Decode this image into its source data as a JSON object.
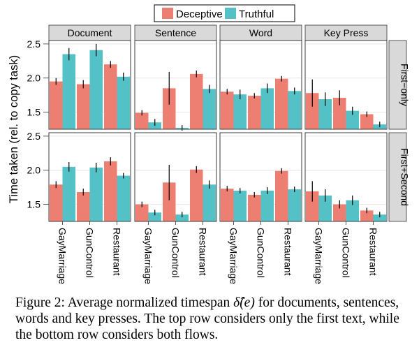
{
  "chart_data": {
    "type": "bar",
    "facet_columns": [
      "Document",
      "Sentence",
      "Word",
      "Key Press"
    ],
    "facet_rows": [
      "First−only",
      "First+Second"
    ],
    "categories": [
      "GayMarriage",
      "GunControl",
      "Restaurant"
    ],
    "ylabel": "Time taken (rel. to copy task)",
    "xlabel": "",
    "ylim": [
      1.25,
      2.55
    ],
    "yticks": [
      "1.5",
      "2.0",
      "2.5"
    ],
    "legend": {
      "placement": "top-center",
      "entries": [
        "Deceptive",
        "Truthful"
      ]
    },
    "series_colors": {
      "Deceptive": "#ED7F72",
      "Truthful": "#54C1C7"
    },
    "panels": [
      {
        "row": "First−only",
        "column": "Document",
        "series": [
          {
            "name": "Deceptive",
            "values": [
              1.95,
              1.91,
              2.2
            ],
            "err": [
              0.05,
              0.06,
              0.05
            ]
          },
          {
            "name": "Truthful",
            "values": [
              2.35,
              2.41,
              2.02
            ],
            "err": [
              0.09,
              0.09,
              0.06
            ]
          }
        ]
      },
      {
        "row": "First−only",
        "column": "Sentence",
        "series": [
          {
            "name": "Deceptive",
            "values": [
              1.49,
              1.85,
              2.06
            ],
            "err": [
              0.04,
              0.24,
              0.05
            ]
          },
          {
            "name": "Truthful",
            "values": [
              1.35,
              1.27,
              1.84
            ],
            "err": [
              0.05,
              0.04,
              0.06
            ]
          }
        ]
      },
      {
        "row": "First−only",
        "column": "Word",
        "series": [
          {
            "name": "Deceptive",
            "values": [
              1.8,
              1.74,
              1.99
            ],
            "err": [
              0.04,
              0.04,
              0.04
            ]
          },
          {
            "name": "Truthful",
            "values": [
              1.76,
              1.85,
              1.81
            ],
            "err": [
              0.07,
              0.07,
              0.05
            ]
          }
        ]
      },
      {
        "row": "First−only",
        "column": "Key Press",
        "series": [
          {
            "name": "Deceptive",
            "values": [
              1.78,
              1.71,
              1.47
            ],
            "err": [
              0.2,
              0.11,
              0.04
            ]
          },
          {
            "name": "Truthful",
            "values": [
              1.69,
              1.52,
              1.32
            ],
            "err": [
              0.1,
              0.06,
              0.04
            ]
          }
        ]
      },
      {
        "row": "First+Second",
        "column": "Document",
        "series": [
          {
            "name": "Deceptive",
            "values": [
              1.79,
              1.68,
              2.13
            ],
            "err": [
              0.05,
              0.05,
              0.06
            ]
          },
          {
            "name": "Truthful",
            "values": [
              2.05,
              2.04,
              1.92
            ],
            "err": [
              0.07,
              0.07,
              0.04
            ]
          }
        ]
      },
      {
        "row": "First+Second",
        "column": "Sentence",
        "series": [
          {
            "name": "Deceptive",
            "values": [
              1.5,
              1.82,
              2.01
            ],
            "err": [
              0.04,
              0.26,
              0.05
            ]
          },
          {
            "name": "Truthful",
            "values": [
              1.38,
              1.35,
              1.79
            ],
            "err": [
              0.04,
              0.04,
              0.06
            ]
          }
        ]
      },
      {
        "row": "First+Second",
        "column": "Word",
        "series": [
          {
            "name": "Deceptive",
            "values": [
              1.73,
              1.64,
              1.99
            ],
            "err": [
              0.04,
              0.04,
              0.04
            ]
          },
          {
            "name": "Truthful",
            "values": [
              1.7,
              1.7,
              1.72
            ],
            "err": [
              0.04,
              0.05,
              0.04
            ]
          }
        ]
      },
      {
        "row": "First+Second",
        "column": "Key Press",
        "series": [
          {
            "name": "Deceptive",
            "values": [
              1.69,
              1.5,
              1.41
            ],
            "err": [
              0.15,
              0.06,
              0.04
            ]
          },
          {
            "name": "Truthful",
            "values": [
              1.63,
              1.56,
              1.35
            ],
            "err": [
              0.09,
              0.07,
              0.04
            ]
          }
        ]
      }
    ]
  },
  "caption": {
    "label": "Figure 2:",
    "pre": "Average normalized timespan ",
    "math": "δ̂(e)",
    "post": " for documents, sentences, words and key presses. The top row considers only the first text, while the bottom row considers both flows."
  }
}
